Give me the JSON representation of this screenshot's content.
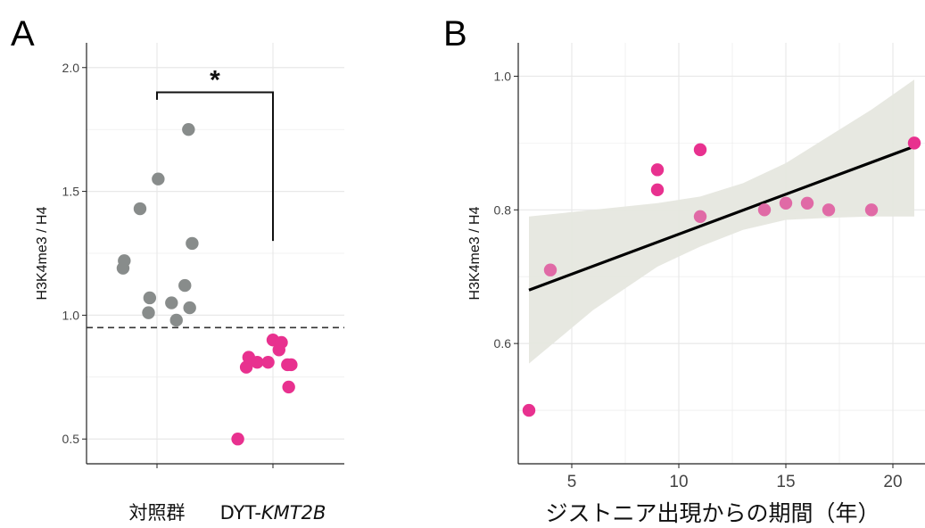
{
  "figure": {
    "panel_a_letter": "A",
    "panel_b_letter": "B"
  },
  "colors": {
    "control": "#888c8b",
    "patient": "#e8318f",
    "patient_light": "#e06aa6",
    "fit_line": "#000000",
    "ci_band": "#e6e7df",
    "grid": "#e8e8e8",
    "panel_border": "#222222",
    "threshold_line": "#333333"
  },
  "chart_data": [
    {
      "id": "A",
      "type": "scatter",
      "title": "",
      "xlabel": "",
      "ylabel": "H3K4me3 / H4",
      "categories": [
        "対照群",
        "DYT-KMT2B"
      ],
      "category_parts": [
        {
          "plain": "対照群",
          "italic": ""
        },
        {
          "plain": "DYT-",
          "italic": "KMT2B"
        }
      ],
      "ylim": [
        0.4,
        2.1
      ],
      "yticks": [
        0.5,
        1.0,
        1.5,
        2.0
      ],
      "ytick_labels": [
        "0.5",
        "1.0",
        "1.5",
        "2.0"
      ],
      "grid": true,
      "threshold": 0.95,
      "significance": {
        "label": "*",
        "between": [
          "対照群",
          "DYT-KMT2B"
        ],
        "left_y": 1.87,
        "top_y": 1.9,
        "right_y": 1.3
      },
      "series": [
        {
          "category": "対照群",
          "color_key": "control",
          "points": [
            {
              "jitter": -0.28,
              "y": 1.19
            },
            {
              "jitter": -0.27,
              "y": 1.22
            },
            {
              "jitter": -0.14,
              "y": 1.43
            },
            {
              "jitter": 0.01,
              "y": 1.55
            },
            {
              "jitter": 0.26,
              "y": 1.75
            },
            {
              "jitter": 0.29,
              "y": 1.29
            },
            {
              "jitter": -0.06,
              "y": 1.07
            },
            {
              "jitter": -0.07,
              "y": 1.01
            },
            {
              "jitter": 0.12,
              "y": 1.05
            },
            {
              "jitter": 0.23,
              "y": 1.12
            },
            {
              "jitter": 0.27,
              "y": 1.03
            },
            {
              "jitter": 0.16,
              "y": 0.98
            }
          ]
        },
        {
          "category": "DYT-KMT2B",
          "color_key": "patient",
          "points": [
            {
              "jitter": -0.29,
              "y": 0.5
            },
            {
              "jitter": -0.22,
              "y": 0.79
            },
            {
              "jitter": -0.2,
              "y": 0.83
            },
            {
              "jitter": -0.13,
              "y": 0.81
            },
            {
              "jitter": -0.04,
              "y": 0.81
            },
            {
              "jitter": 0.0,
              "y": 0.9
            },
            {
              "jitter": 0.05,
              "y": 0.86
            },
            {
              "jitter": 0.07,
              "y": 0.89
            },
            {
              "jitter": 0.12,
              "y": 0.8
            },
            {
              "jitter": 0.15,
              "y": 0.8
            },
            {
              "jitter": 0.13,
              "y": 0.71
            }
          ]
        }
      ]
    },
    {
      "id": "B",
      "type": "scatter",
      "title": "",
      "xlabel": "ジストニア出現からの期間（年）",
      "ylabel": "H3K4me3 / H4",
      "xlim": [
        2.5,
        21.5
      ],
      "ylim": [
        0.42,
        1.05
      ],
      "xticks": [
        5,
        10,
        15,
        20
      ],
      "xtick_labels": [
        "5",
        "10",
        "15",
        "20"
      ],
      "yticks": [
        0.6,
        0.8,
        1.0
      ],
      "ytick_labels": [
        "0.6",
        "0.8",
        "1.0"
      ],
      "grid": true,
      "points": [
        {
          "x": 3,
          "y": 0.5,
          "color_key": "patient"
        },
        {
          "x": 4,
          "y": 0.71,
          "color_key": "patient_light"
        },
        {
          "x": 9,
          "y": 0.86,
          "color_key": "patient"
        },
        {
          "x": 9,
          "y": 0.83,
          "color_key": "patient"
        },
        {
          "x": 11,
          "y": 0.89,
          "color_key": "patient"
        },
        {
          "x": 11,
          "y": 0.79,
          "color_key": "patient_light"
        },
        {
          "x": 14,
          "y": 0.8,
          "color_key": "patient_light"
        },
        {
          "x": 15,
          "y": 0.81,
          "color_key": "patient_light"
        },
        {
          "x": 16,
          "y": 0.81,
          "color_key": "patient_light"
        },
        {
          "x": 17,
          "y": 0.8,
          "color_key": "patient_light"
        },
        {
          "x": 19,
          "y": 0.8,
          "color_key": "patient_light"
        },
        {
          "x": 21,
          "y": 0.9,
          "color_key": "patient"
        }
      ],
      "fit": {
        "x": [
          3,
          21
        ],
        "y": [
          0.68,
          0.895
        ]
      },
      "ci": {
        "x": [
          3,
          6,
          9,
          11,
          13,
          15,
          17,
          19,
          21
        ],
        "lower": [
          0.57,
          0.65,
          0.715,
          0.745,
          0.77,
          0.785,
          0.788,
          0.79,
          0.79
        ],
        "upper": [
          0.79,
          0.8,
          0.81,
          0.82,
          0.84,
          0.87,
          0.91,
          0.95,
          0.995
        ]
      }
    }
  ]
}
